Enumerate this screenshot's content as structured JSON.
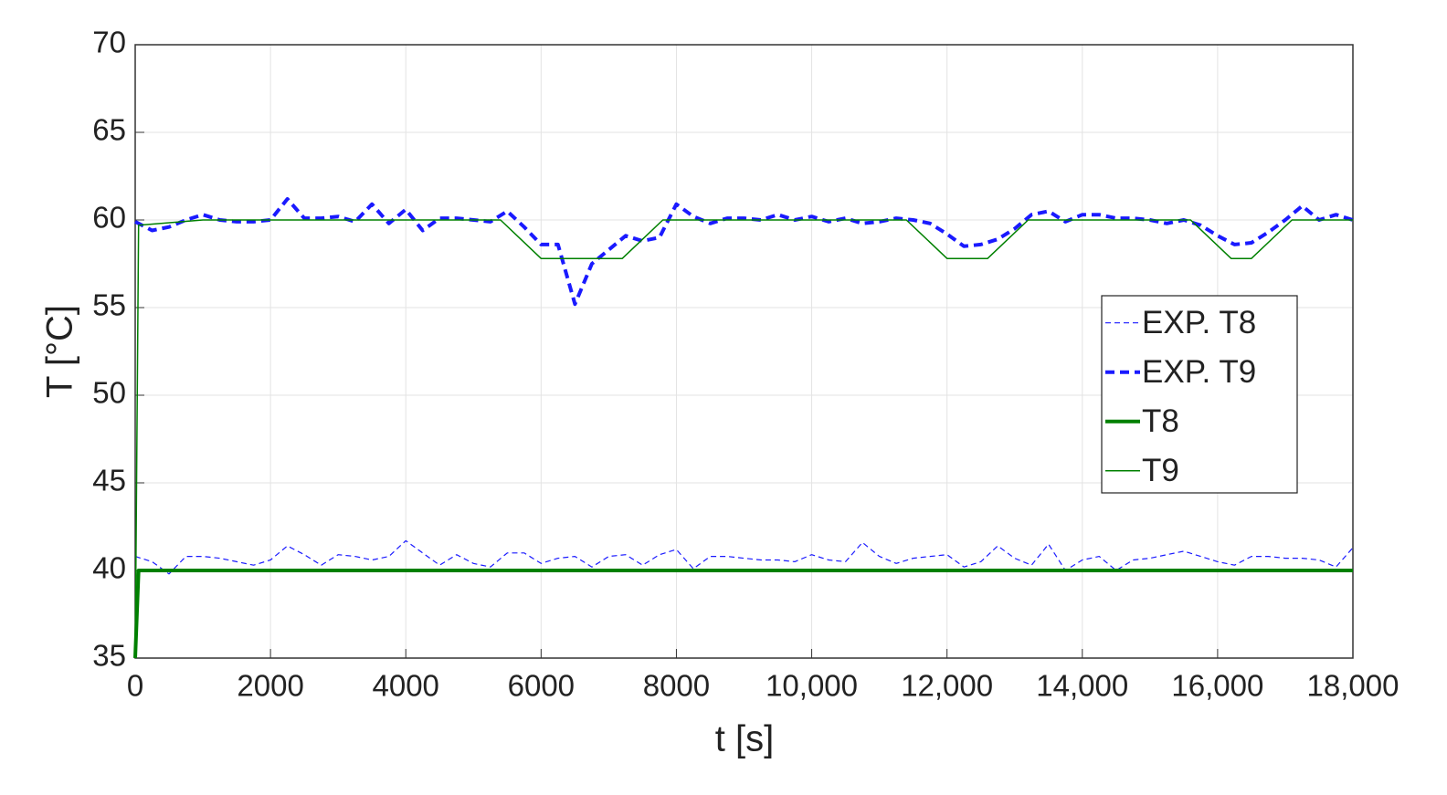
{
  "chart_data": {
    "type": "line",
    "xlabel": "t [s]",
    "ylabel": "T [°C]",
    "xlim": [
      0,
      18000
    ],
    "ylim": [
      35,
      70
    ],
    "xticks": [
      0,
      2000,
      4000,
      6000,
      8000,
      {
        "value": 10000,
        "label": "10,000"
      },
      {
        "value": 12000,
        "label": "12,000"
      },
      {
        "value": 14000,
        "label": "14,000"
      },
      {
        "value": 16000,
        "label": "16,000"
      },
      {
        "value": 18000,
        "label": "18,000"
      }
    ],
    "yticks": [
      35,
      40,
      45,
      50,
      55,
      60,
      65,
      70
    ],
    "grid": true,
    "legend": "east",
    "series": [
      {
        "name": "EXP. T8",
        "color": "#1a1aff",
        "linestyle": "dashed",
        "linewidth": 1.2,
        "x": [
          0,
          250,
          500,
          750,
          1000,
          1250,
          1500,
          1750,
          2000,
          2250,
          2500,
          2750,
          3000,
          3250,
          3500,
          3750,
          4000,
          4250,
          4500,
          4750,
          5000,
          5250,
          5500,
          5750,
          6000,
          6250,
          6500,
          6750,
          7000,
          7250,
          7500,
          7750,
          8000,
          8250,
          8500,
          8750,
          9000,
          9250,
          9500,
          9750,
          10000,
          10250,
          10500,
          10750,
          11000,
          11250,
          11500,
          11750,
          12000,
          12250,
          12500,
          12750,
          13000,
          13250,
          13500,
          13750,
          14000,
          14250,
          14500,
          14750,
          15000,
          15250,
          15500,
          15750,
          16000,
          16250,
          16500,
          16750,
          17000,
          17250,
          17500,
          17750,
          18000
        ],
        "values": [
          40.8,
          40.5,
          39.8,
          40.8,
          40.8,
          40.7,
          40.5,
          40.3,
          40.6,
          41.4,
          40.9,
          40.3,
          40.9,
          40.8,
          40.6,
          40.8,
          41.7,
          41.0,
          40.3,
          40.9,
          40.4,
          40.2,
          41.0,
          41.0,
          40.4,
          40.7,
          40.8,
          40.2,
          40.8,
          40.9,
          40.3,
          40.9,
          41.2,
          40.1,
          40.8,
          40.8,
          40.7,
          40.6,
          40.6,
          40.5,
          40.9,
          40.6,
          40.5,
          41.6,
          40.8,
          40.4,
          40.7,
          40.8,
          40.9,
          40.2,
          40.5,
          41.4,
          40.7,
          40.3,
          41.5,
          40.0,
          40.6,
          40.8,
          40.0,
          40.6,
          40.7,
          40.9,
          41.1,
          40.8,
          40.5,
          40.3,
          40.8,
          40.8,
          40.7,
          40.7,
          40.6,
          40.2,
          41.3
        ]
      },
      {
        "name": "EXP. T9",
        "color": "#1a1aff",
        "linestyle": "dashed",
        "linewidth": 4,
        "x": [
          0,
          250,
          500,
          750,
          1000,
          1250,
          1500,
          1750,
          2000,
          2250,
          2500,
          2750,
          3000,
          3250,
          3500,
          3750,
          4000,
          4250,
          4500,
          4750,
          5000,
          5250,
          5500,
          5750,
          6000,
          6250,
          6500,
          6750,
          7000,
          7250,
          7500,
          7750,
          8000,
          8250,
          8500,
          8750,
          9000,
          9250,
          9500,
          9750,
          10000,
          10250,
          10500,
          10750,
          11000,
          11250,
          11500,
          11750,
          12000,
          12250,
          12500,
          12750,
          13000,
          13250,
          13500,
          13750,
          14000,
          14250,
          14500,
          14750,
          15000,
          15250,
          15500,
          15750,
          16000,
          16250,
          16500,
          16750,
          17000,
          17250,
          17500,
          17750,
          18000
        ],
        "values": [
          59.9,
          59.4,
          59.6,
          60.0,
          60.3,
          60.0,
          59.9,
          59.9,
          60.0,
          61.2,
          60.1,
          60.1,
          60.2,
          59.9,
          60.9,
          59.8,
          60.6,
          59.4,
          60.1,
          60.1,
          60.0,
          59.9,
          60.5,
          59.6,
          58.6,
          58.6,
          55.2,
          57.5,
          58.3,
          59.1,
          58.8,
          59.0,
          60.9,
          60.2,
          59.8,
          60.1,
          60.1,
          60.0,
          60.3,
          60.0,
          60.2,
          59.9,
          60.1,
          59.8,
          59.9,
          60.1,
          60.0,
          59.8,
          59.2,
          58.5,
          58.6,
          58.9,
          59.5,
          60.3,
          60.5,
          59.9,
          60.3,
          60.3,
          60.1,
          60.1,
          60.0,
          59.8,
          60.0,
          59.7,
          59.1,
          58.6,
          58.7,
          59.3,
          60.0,
          60.8,
          60.0,
          60.3,
          60.0
        ]
      },
      {
        "name": "T8",
        "color": "#008000",
        "linestyle": "solid",
        "linewidth": 4,
        "x": [
          0,
          50,
          18000
        ],
        "values": [
          35,
          40,
          40
        ]
      },
      {
        "name": "T9",
        "color": "#008000",
        "linestyle": "solid",
        "linewidth": 1.5,
        "x": [
          0,
          50,
          1000,
          5400,
          6000,
          7200,
          7800,
          11400,
          12000,
          12600,
          13200,
          15600,
          16200,
          16500,
          17100,
          18000
        ],
        "values": [
          35,
          59.7,
          60,
          60,
          57.8,
          57.8,
          60,
          60,
          57.8,
          57.8,
          60,
          60,
          57.8,
          57.8,
          60,
          60
        ]
      }
    ]
  }
}
